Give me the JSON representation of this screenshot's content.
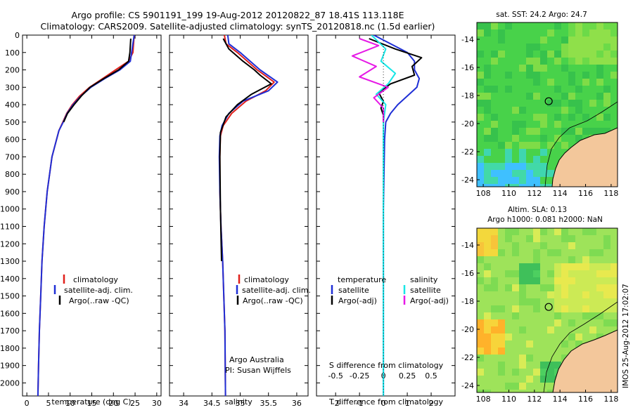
{
  "header": {
    "title_line1": "Argo profile: CS 5901191_199 19-Aug-2012 20120822_87 18.41S 113.118E",
    "title_line2": "Climatology: CARS2009. Satellite-adjusted climatology: synTS_20120818.nc (1.5d earlier)"
  },
  "colors": {
    "climatology": "#e0201c",
    "satellite": "#1f2fd6",
    "argo": "#000000",
    "salinity_satellite": "#19e6e6",
    "salinity_argo": "#e619e6",
    "land": "#f3c79b"
  },
  "chart_data": [
    {
      "type": "line",
      "panel": "temperature",
      "xlabel": "temperature (deg C)",
      "xlim": [
        -1,
        31
      ],
      "ylim": [
        0,
        2075
      ],
      "y_reversed": true,
      "xticks": [
        0,
        5,
        10,
        15,
        20,
        25,
        30
      ],
      "yticks": [
        0,
        100,
        200,
        300,
        400,
        500,
        600,
        700,
        800,
        900,
        1000,
        1100,
        1200,
        1300,
        1400,
        1500,
        1600,
        1700,
        1800,
        1900,
        2000
      ],
      "legend": [
        "climatology",
        "satellite-adj. clim.",
        "Argo(..raw -QC)"
      ],
      "series": [
        {
          "name": "climatology",
          "color": "#e0201c",
          "x": [
            24.8,
            24.5,
            23.5,
            20.5,
            17.5,
            14.5,
            12.2,
            10.5,
            9.2,
            8.3,
            7.4,
            5.8,
            4.7,
            4.0,
            3.5,
            3.2,
            2.9,
            2.7,
            2.55
          ],
          "y": [
            0,
            100,
            150,
            200,
            250,
            300,
            350,
            400,
            450,
            500,
            550,
            700,
            900,
            1100,
            1300,
            1500,
            1700,
            1900,
            2075
          ]
        },
        {
          "name": "satellite-adj. clim.",
          "color": "#1f2fd6",
          "x": [
            24.8,
            24.2,
            23.9,
            21.5,
            18.0,
            14.8,
            12.5,
            10.7,
            9.3,
            8.4,
            7.4,
            5.8,
            4.7,
            4.0,
            3.5,
            3.2,
            2.9,
            2.7,
            2.55
          ],
          "y": [
            0,
            100,
            150,
            200,
            250,
            300,
            350,
            400,
            450,
            500,
            550,
            700,
            900,
            1100,
            1300,
            1500,
            1700,
            1900,
            2075
          ]
        },
        {
          "name": "Argo(..raw -QC)",
          "color": "#000000",
          "x": [
            24.0,
            23.8,
            23.5,
            21.2,
            17.8,
            14.6,
            12.6,
            10.9,
            9.4,
            8.5
          ],
          "y": [
            20,
            100,
            150,
            200,
            250,
            300,
            350,
            400,
            450,
            500
          ]
        }
      ]
    },
    {
      "type": "line",
      "panel": "salinity",
      "xlabel": "salinity",
      "xlim": [
        33.75,
        36.2
      ],
      "ylim": [
        0,
        2075
      ],
      "y_reversed": true,
      "xticks": [
        34,
        34.5,
        35,
        35.5,
        36
      ],
      "legend": [
        "climatology",
        "satellite-adj. clim.",
        "Argo(..raw -QC)"
      ],
      "annotation": [
        "Argo Australia",
        "PI: Susan Wijffels"
      ],
      "series": [
        {
          "name": "climatology",
          "color": "#e0201c",
          "x": [
            34.72,
            34.75,
            34.95,
            35.3,
            35.6,
            35.45,
            35.1,
            34.85,
            34.7,
            34.65,
            34.64,
            34.64,
            34.66,
            34.69,
            34.71,
            34.73,
            34.74
          ],
          "y": [
            0,
            50,
            100,
            200,
            270,
            320,
            380,
            450,
            520,
            580,
            700,
            900,
            1100,
            1300,
            1500,
            1700,
            2075
          ]
        },
        {
          "name": "satellite-adj. clim.",
          "color": "#1f2fd6",
          "x": [
            34.78,
            34.8,
            35.0,
            35.35,
            35.66,
            35.5,
            35.05,
            34.8,
            34.68,
            34.64,
            34.63,
            34.64,
            34.66,
            34.69,
            34.71,
            34.73,
            34.74
          ],
          "y": [
            0,
            50,
            100,
            200,
            270,
            320,
            380,
            450,
            520,
            580,
            700,
            900,
            1100,
            1300,
            1500,
            1700,
            2075
          ]
        },
        {
          "name": "Argo(..raw -QC)",
          "color": "#000000",
          "x": [
            34.7,
            34.8,
            35.05,
            35.25,
            35.35,
            35.55,
            35.2,
            34.95,
            34.75,
            34.65,
            34.64,
            34.65,
            34.67
          ],
          "y": [
            20,
            80,
            150,
            200,
            230,
            280,
            340,
            400,
            470,
            560,
            700,
            1000,
            1300
          ]
        }
      ]
    },
    {
      "type": "line",
      "panel": "difference",
      "xlabel_top": "S difference from climatology",
      "xlabel": "T difference from climatology",
      "xlim": [
        -2.8,
        3.0
      ],
      "ylim": [
        0,
        2075
      ],
      "y_reversed": true,
      "xticks": [
        -2,
        -1,
        0,
        1,
        2
      ],
      "xticks_top": [
        -0.5,
        -0.25,
        0,
        0.25,
        0.5
      ],
      "legend_temperature": [
        "temperature",
        "satellite",
        "Argo(-adj)"
      ],
      "legend_salinity": [
        "salinity",
        "satellite",
        "Argo(-adj)"
      ],
      "series": [
        {
          "name": "satellite",
          "group": "temperature",
          "color": "#1f2fd6",
          "x": [
            -0.4,
            1.0,
            1.3,
            1.3,
            1.5,
            1.4,
            1.0,
            0.6,
            0.3,
            0.1,
            0.05,
            0.0,
            0.0
          ],
          "y": [
            0,
            100,
            150,
            200,
            250,
            300,
            350,
            400,
            450,
            500,
            600,
            1000,
            2075
          ]
        },
        {
          "name": "Argo(-adj)",
          "group": "temperature",
          "color": "#000000",
          "x": [
            -0.6,
            0.5,
            1.6,
            1.2,
            1.3,
            0.3,
            -0.2,
            0.0,
            -0.1,
            0.0,
            0.0
          ],
          "y": [
            20,
            80,
            130,
            180,
            230,
            280,
            330,
            380,
            420,
            460,
            500
          ]
        },
        {
          "name": "satellite",
          "group": "salinity",
          "color": "#19e6e6",
          "x": [
            -0.5,
            0.1,
            -0.1,
            0.5,
            0.2,
            -0.3,
            0.1,
            0.0,
            0.0,
            0.0
          ],
          "y": [
            0,
            80,
            150,
            220,
            280,
            340,
            400,
            500,
            1000,
            2075
          ]
        },
        {
          "name": "Argo(-adj)",
          "group": "salinity",
          "color": "#e619e6",
          "x": [
            -1.0,
            -0.2,
            -1.3,
            -0.3,
            -1.0,
            0.2,
            -0.4,
            0.0,
            0.0
          ],
          "y": [
            20,
            60,
            120,
            180,
            240,
            300,
            360,
            420,
            500
          ]
        }
      ]
    },
    {
      "type": "heatmap",
      "panel": "sst_map",
      "title": "sat. SST: 24.2 Argo: 24.7",
      "xlim": [
        107.5,
        118.5
      ],
      "ylim": [
        -24.5,
        -12.8
      ],
      "xticks": [
        108,
        110,
        112,
        114,
        116,
        118
      ],
      "yticks": [
        -14,
        -16,
        -18,
        -20,
        -22,
        -24
      ],
      "marker": {
        "lon": 113.118,
        "lat": -18.41
      }
    },
    {
      "type": "heatmap",
      "panel": "sla_map",
      "title_line1": "Altim. SLA: 0.13",
      "title_line2": "Argo h1000: 0.081 h2000: NaN",
      "xlim": [
        107.5,
        118.5
      ],
      "ylim": [
        -24.5,
        -12.8
      ],
      "xticks": [
        108,
        110,
        112,
        114,
        116,
        118
      ],
      "yticks": [
        -14,
        -16,
        -18,
        -20,
        -22,
        -24
      ],
      "marker": {
        "lon": 113.118,
        "lat": -18.41
      }
    }
  ],
  "footer": {
    "stamp": "IMOS 25-Aug-2012 17:02:07"
  }
}
